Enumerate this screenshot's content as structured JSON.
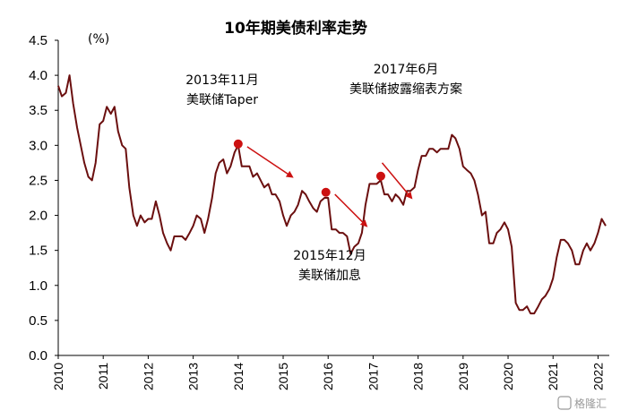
{
  "chart_data": {
    "type": "line",
    "title": "10年期美债利率走势",
    "unit_label": "(%)",
    "xlim": [
      2010.0,
      2022.25
    ],
    "ylim": [
      0.0,
      4.5
    ],
    "y_ticks": [
      "0.0",
      "0.5",
      "1.0",
      "1.5",
      "2.0",
      "2.5",
      "3.0",
      "3.5",
      "4.0",
      "4.5"
    ],
    "x_ticks": [
      "2010",
      "2011",
      "2012",
      "2013",
      "2014",
      "2015",
      "2016",
      "2017",
      "2018",
      "2019",
      "2020",
      "2021",
      "2022"
    ],
    "grid": false,
    "line_color": "#6b0f0f",
    "marker_color": "#cc1111",
    "series": [
      {
        "x": [
          2010.0,
          2010.08,
          2010.17,
          2010.25,
          2010.33,
          2010.42,
          2010.5,
          2010.58,
          2010.67,
          2010.75,
          2010.83,
          2010.92,
          2011.0,
          2011.08,
          2011.17,
          2011.25,
          2011.33,
          2011.42,
          2011.5,
          2011.58,
          2011.67,
          2011.75,
          2011.83,
          2011.92,
          2012.0,
          2012.08,
          2012.17,
          2012.25,
          2012.33,
          2012.42,
          2012.5,
          2012.58,
          2012.67,
          2012.75,
          2012.83,
          2012.92,
          2013.0,
          2013.08,
          2013.17,
          2013.25,
          2013.33,
          2013.42,
          2013.5,
          2013.58,
          2013.67,
          2013.75,
          2013.83,
          2013.92,
          2014.0,
          2014.08,
          2014.17,
          2014.25,
          2014.33,
          2014.42,
          2014.5,
          2014.58,
          2014.67,
          2014.75,
          2014.83,
          2014.92,
          2015.0,
          2015.08,
          2015.17,
          2015.25,
          2015.33,
          2015.42,
          2015.5,
          2015.58,
          2015.67,
          2015.75,
          2015.83,
          2015.92,
          2016.0,
          2016.08,
          2016.17,
          2016.25,
          2016.33,
          2016.42,
          2016.5,
          2016.58,
          2016.67,
          2016.75,
          2016.83,
          2016.92,
          2017.0,
          2017.08,
          2017.17,
          2017.25,
          2017.33,
          2017.42,
          2017.5,
          2017.58,
          2017.67,
          2017.75,
          2017.83,
          2017.92,
          2018.0,
          2018.08,
          2018.17,
          2018.25,
          2018.33,
          2018.42,
          2018.5,
          2018.58,
          2018.67,
          2018.75,
          2018.83,
          2018.92,
          2019.0,
          2019.08,
          2019.17,
          2019.25,
          2019.33,
          2019.42,
          2019.5,
          2019.58,
          2019.67,
          2019.75,
          2019.83,
          2019.92,
          2020.0,
          2020.08,
          2020.17,
          2020.25,
          2020.33,
          2020.42,
          2020.5,
          2020.58,
          2020.67,
          2020.75,
          2020.83,
          2020.92,
          2021.0,
          2021.08,
          2021.17,
          2021.25,
          2021.33,
          2021.42,
          2021.5,
          2021.58,
          2021.67,
          2021.75,
          2021.83,
          2021.92,
          2022.0,
          2022.08,
          2022.17
        ],
        "y": [
          3.85,
          3.7,
          3.75,
          4.0,
          3.6,
          3.25,
          3.0,
          2.75,
          2.55,
          2.5,
          2.75,
          3.3,
          3.35,
          3.55,
          3.45,
          3.55,
          3.2,
          3.0,
          2.95,
          2.4,
          2.0,
          1.85,
          2.0,
          1.9,
          1.95,
          1.95,
          2.2,
          2.0,
          1.75,
          1.6,
          1.5,
          1.7,
          1.7,
          1.7,
          1.65,
          1.75,
          1.85,
          2.0,
          1.95,
          1.75,
          1.95,
          2.25,
          2.6,
          2.75,
          2.8,
          2.6,
          2.7,
          2.9,
          3.0,
          2.7,
          2.7,
          2.7,
          2.55,
          2.6,
          2.5,
          2.4,
          2.45,
          2.3,
          2.3,
          2.2,
          2.0,
          1.85,
          2.0,
          2.05,
          2.15,
          2.35,
          2.3,
          2.2,
          2.1,
          2.05,
          2.2,
          2.25,
          2.25,
          1.8,
          1.8,
          1.75,
          1.75,
          1.7,
          1.45,
          1.55,
          1.6,
          1.75,
          2.15,
          2.45,
          2.45,
          2.45,
          2.5,
          2.3,
          2.3,
          2.2,
          2.3,
          2.25,
          2.15,
          2.35,
          2.35,
          2.4,
          2.65,
          2.85,
          2.85,
          2.95,
          2.95,
          2.9,
          2.95,
          2.95,
          2.95,
          3.15,
          3.1,
          2.95,
          2.7,
          2.65,
          2.6,
          2.5,
          2.3,
          2.0,
          2.05,
          1.6,
          1.6,
          1.75,
          1.8,
          1.9,
          1.8,
          1.55,
          0.75,
          0.65,
          0.65,
          0.7,
          0.6,
          0.6,
          0.7,
          0.8,
          0.85,
          0.95,
          1.1,
          1.4,
          1.65,
          1.65,
          1.6,
          1.5,
          1.3,
          1.3,
          1.5,
          1.6,
          1.5,
          1.6,
          1.75,
          1.95,
          1.85
        ]
      }
    ],
    "annotations": [
      {
        "lines": [
          "2013年11月",
          "美联储Taper"
        ],
        "marker": [
          2014.0,
          3.02
        ]
      },
      {
        "lines": [
          "2015年12月",
          "美联储加息"
        ],
        "marker": [
          2015.95,
          2.33
        ]
      },
      {
        "lines": [
          "2017年6月",
          "美联储披露缩表方案"
        ],
        "marker": [
          2017.17,
          2.56
        ]
      }
    ],
    "arrows": [
      {
        "from": [
          2014.2,
          2.98
        ],
        "to": [
          2015.2,
          2.55
        ]
      },
      {
        "from": [
          2016.15,
          2.3
        ],
        "to": [
          2016.85,
          1.85
        ]
      },
      {
        "from": [
          2017.2,
          2.75
        ],
        "to": [
          2017.85,
          2.25
        ]
      }
    ]
  },
  "watermark": "格隆汇"
}
